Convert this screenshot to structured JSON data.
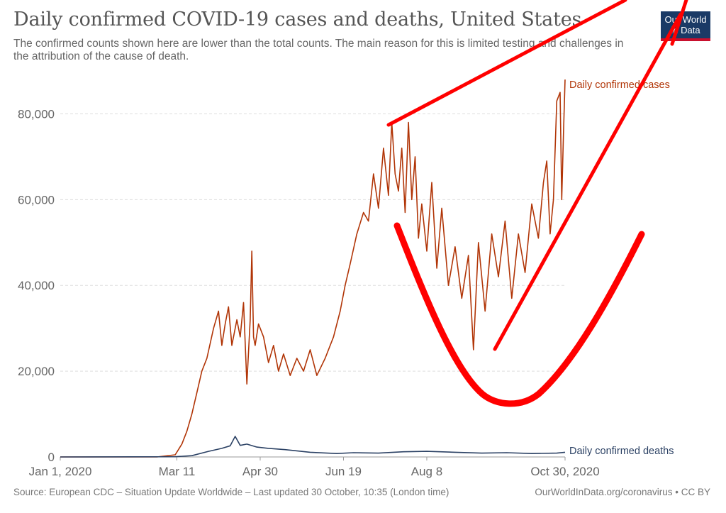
{
  "header": {
    "title": "Daily confirmed COVID-19 cases and deaths, United States",
    "subtitle": "The confirmed counts shown here are lower than the total counts. The main reason for this is limited testing and challenges in the attribution of the cause of death.",
    "logo_line1": "Our World",
    "logo_line2": "in Data"
  },
  "footer": {
    "source": "Source: European CDC – Situation Update Worldwide – Last updated 30 October, 10:35 (London time)",
    "credit": "OurWorldInData.org/coronavirus • CC BY"
  },
  "colors": {
    "cases": "#b13507",
    "deaths": "#2b4164",
    "grid": "#dddddd",
    "axis": "#999999",
    "annotation": "#ff0000"
  },
  "chart_data": {
    "type": "line",
    "x_start": "2020-01-01",
    "x_end": "2020-10-30",
    "ylim": [
      0,
      90000
    ],
    "y_ticks": [
      0,
      20000,
      40000,
      60000,
      80000
    ],
    "y_tick_labels": [
      "0",
      "20,000",
      "40,000",
      "60,000",
      "80,000"
    ],
    "x_ticks": [
      "2020-01-01",
      "2020-03-11",
      "2020-04-30",
      "2020-06-19",
      "2020-08-08",
      "2020-10-30"
    ],
    "x_tick_labels": [
      "Jan 1, 2020",
      "Mar 11",
      "Apr 30",
      "Jun 19",
      "Aug 8",
      "Oct 30, 2020"
    ],
    "grid": true,
    "legend": "labels at line ends",
    "series": [
      {
        "name": "Daily confirmed cases",
        "x": [
          "2020-01-01",
          "2020-02-28",
          "2020-03-10",
          "2020-03-14",
          "2020-03-17",
          "2020-03-20",
          "2020-03-23",
          "2020-03-26",
          "2020-03-29",
          "2020-04-02",
          "2020-04-05",
          "2020-04-07",
          "2020-04-09",
          "2020-04-11",
          "2020-04-13",
          "2020-04-16",
          "2020-04-18",
          "2020-04-20",
          "2020-04-22",
          "2020-04-24",
          "2020-04-25",
          "2020-04-26",
          "2020-04-27",
          "2020-04-29",
          "2020-05-02",
          "2020-05-05",
          "2020-05-08",
          "2020-05-11",
          "2020-05-14",
          "2020-05-18",
          "2020-05-22",
          "2020-05-26",
          "2020-05-30",
          "2020-06-03",
          "2020-06-08",
          "2020-06-13",
          "2020-06-17",
          "2020-06-20",
          "2020-06-23",
          "2020-06-27",
          "2020-07-01",
          "2020-07-04",
          "2020-07-07",
          "2020-07-10",
          "2020-07-13",
          "2020-07-16",
          "2020-07-18",
          "2020-07-20",
          "2020-07-22",
          "2020-07-24",
          "2020-07-26",
          "2020-07-28",
          "2020-07-30",
          "2020-08-01",
          "2020-08-03",
          "2020-08-05",
          "2020-08-08",
          "2020-08-11",
          "2020-08-14",
          "2020-08-17",
          "2020-08-21",
          "2020-08-25",
          "2020-08-29",
          "2020-09-02",
          "2020-09-05",
          "2020-09-08",
          "2020-09-12",
          "2020-09-16",
          "2020-09-20",
          "2020-09-24",
          "2020-09-28",
          "2020-10-02",
          "2020-10-06",
          "2020-10-10",
          "2020-10-14",
          "2020-10-17",
          "2020-10-19",
          "2020-10-21",
          "2020-10-23",
          "2020-10-25",
          "2020-10-27",
          "2020-10-28",
          "2020-10-29",
          "2020-10-30"
        ],
        "values": [
          0,
          0,
          500,
          3000,
          6000,
          10000,
          15000,
          20000,
          23000,
          30000,
          34000,
          26000,
          31000,
          35000,
          26000,
          32000,
          28000,
          36000,
          17000,
          32000,
          48000,
          28000,
          26000,
          31000,
          28000,
          22000,
          26000,
          20000,
          24000,
          19000,
          23000,
          20000,
          25000,
          19000,
          23000,
          28000,
          34000,
          40000,
          45000,
          52000,
          57000,
          55000,
          66000,
          58000,
          72000,
          61000,
          78000,
          66000,
          62000,
          72000,
          57000,
          78000,
          60000,
          70000,
          51000,
          59000,
          48000,
          64000,
          44000,
          58000,
          40000,
          49000,
          37000,
          47000,
          25000,
          50000,
          34000,
          52000,
          42000,
          55000,
          37000,
          52000,
          43000,
          59000,
          51000,
          64000,
          69000,
          52000,
          60000,
          83000,
          85000,
          60000,
          75000,
          88000
        ]
      },
      {
        "name": "Daily confirmed deaths",
        "x": [
          "2020-01-01",
          "2020-03-10",
          "2020-03-20",
          "2020-03-30",
          "2020-04-07",
          "2020-04-12",
          "2020-04-15",
          "2020-04-18",
          "2020-04-22",
          "2020-04-28",
          "2020-05-05",
          "2020-05-15",
          "2020-05-30",
          "2020-06-15",
          "2020-06-25",
          "2020-07-10",
          "2020-07-25",
          "2020-08-08",
          "2020-08-25",
          "2020-09-10",
          "2020-09-25",
          "2020-10-10",
          "2020-10-25",
          "2020-10-30"
        ],
        "values": [
          0,
          50,
          300,
          1300,
          2000,
          2600,
          4800,
          2700,
          3000,
          2300,
          2000,
          1700,
          1100,
          800,
          1000,
          900,
          1200,
          1300,
          1100,
          900,
          1000,
          800,
          900,
          1100
        ]
      }
    ]
  },
  "annotations": {
    "description": "hand-drawn red overlay: a rising trend line, a U-shaped curve and a check-mark style stroke"
  }
}
